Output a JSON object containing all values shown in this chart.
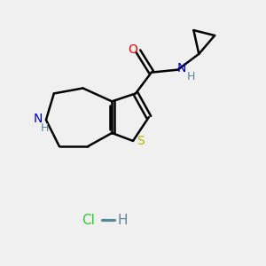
{
  "bg_color": "#f0f0f0",
  "bond_color": "#000000",
  "S_color": "#b5b800",
  "N_color": "#0000cc",
  "O_color": "#ff0000",
  "NH_amide_color": "#0000cc",
  "Cl_color": "#33cc33",
  "H_hcl_color": "#558899",
  "line_width": 1.8,
  "figsize": [
    3.0,
    3.0
  ],
  "dpi": 100,
  "xlim": [
    0,
    10
  ],
  "ylim": [
    0,
    10
  ]
}
